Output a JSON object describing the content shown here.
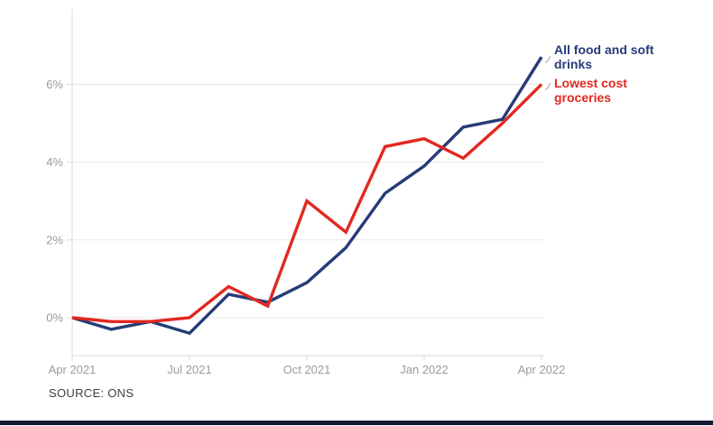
{
  "chart_data": {
    "type": "line",
    "title": "",
    "xlabel": "",
    "ylabel": "",
    "grid": "horizontal",
    "legend_position": "right of line ends",
    "ylim": [
      -1,
      7.9
    ],
    "x": [
      "Apr 2021",
      "May 2021",
      "Jun 2021",
      "Jul 2021",
      "Aug 2021",
      "Sep 2021",
      "Oct 2021",
      "Nov 2021",
      "Dec 2021",
      "Jan 2022",
      "Feb 2022",
      "Mar 2022",
      "Apr 2022"
    ],
    "series": [
      {
        "name": "All food and soft drinks",
        "values": [
          0.0,
          -0.3,
          -0.1,
          -0.4,
          0.6,
          0.4,
          0.9,
          1.8,
          3.2,
          3.9,
          4.9,
          5.1,
          6.7
        ]
      },
      {
        "name": "Lowest cost groceries",
        "values": [
          0.0,
          -0.1,
          -0.1,
          0.0,
          0.8,
          0.3,
          3.0,
          2.2,
          4.4,
          4.6,
          4.1,
          5.0,
          6.0
        ]
      }
    ],
    "x_ticks": [
      {
        "label": "Apr 2021",
        "month_index": 0
      },
      {
        "label": "Jul 2021",
        "month_index": 3
      },
      {
        "label": "Oct 2021",
        "month_index": 6
      },
      {
        "label": "Jan 2022",
        "month_index": 9
      },
      {
        "label": "Apr 2022",
        "month_index": 12
      }
    ],
    "y_ticks": [
      {
        "label": "0%",
        "value": 0
      },
      {
        "label": "2%",
        "value": 2
      },
      {
        "label": "4%",
        "value": 4
      },
      {
        "label": "6%",
        "value": 6
      }
    ]
  },
  "legend": {
    "all_food_label": "All food and soft drinks",
    "lowest_cost_label": "Lowest cost groceries"
  },
  "source_label": "SOURCE: ONS",
  "colors": {
    "all_food": "#253c77",
    "lowest_cost": "#e22820",
    "grid": "#e9e9e9",
    "axis": "#d8d8d8",
    "tick_label": "#9b9b9b",
    "leader_mark": "#b3b3b3",
    "source_text": "#3f3f3f",
    "footer_bar": "#0f1b33"
  }
}
